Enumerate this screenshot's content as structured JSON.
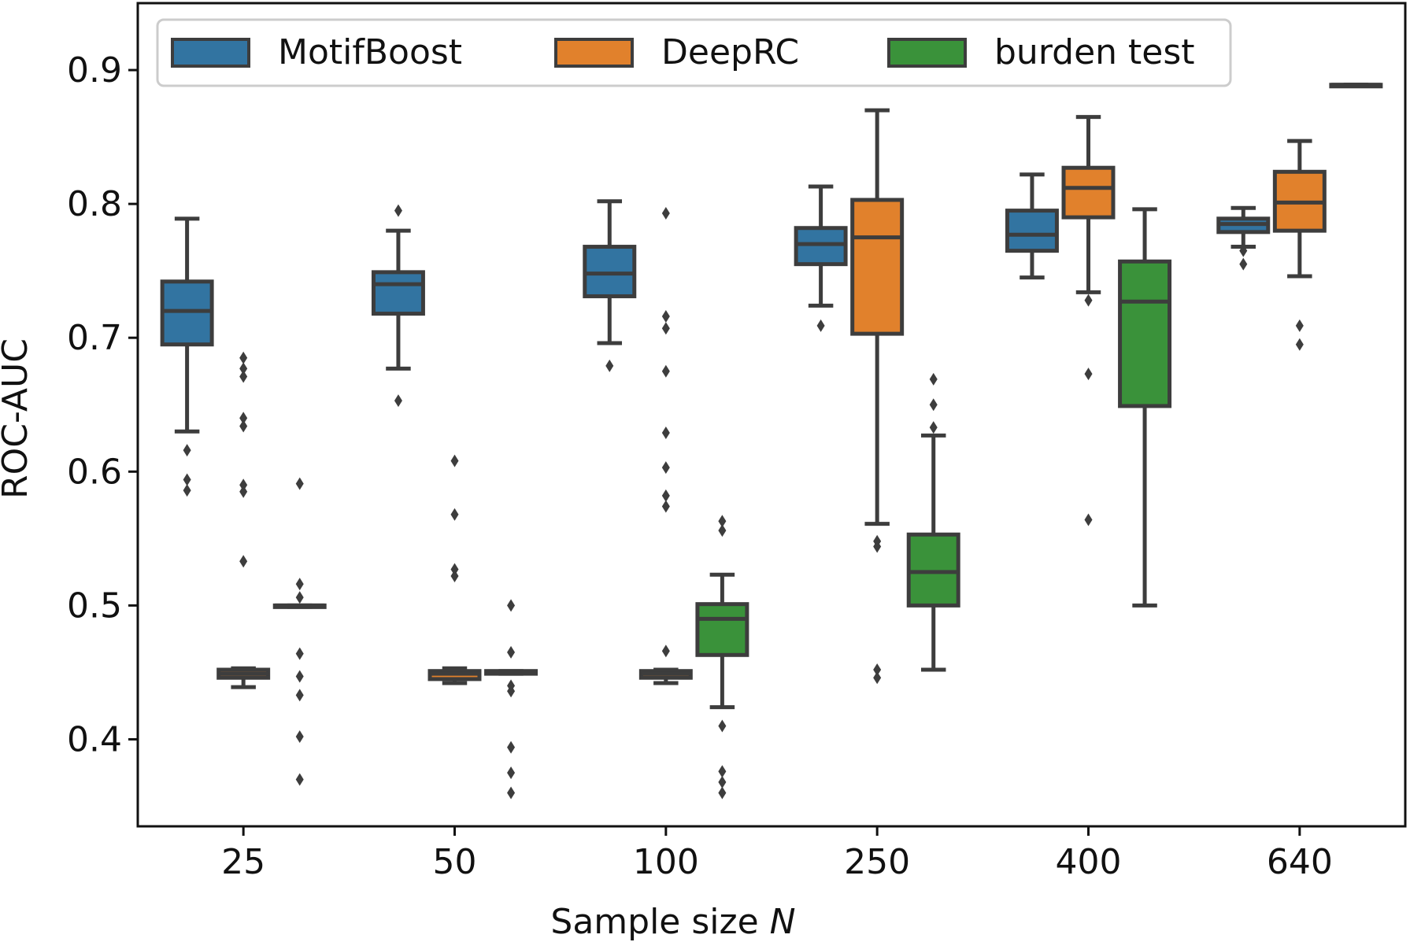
{
  "chart_data": {
    "type": "box",
    "xlabel": "Sample size",
    "xlabel_var": "N",
    "ylabel": "ROC-AUC",
    "ylim": [
      0.335,
      0.95
    ],
    "yticks": [
      0.4,
      0.5,
      0.6,
      0.7,
      0.8,
      0.9
    ],
    "ytick_labels": [
      "0.4",
      "0.5",
      "0.6",
      "0.7",
      "0.8",
      "0.9"
    ],
    "categories": [
      "25",
      "50",
      "100",
      "250",
      "400",
      "640"
    ],
    "legend_position": "top",
    "series": [
      {
        "name": "MotifBoost",
        "color": "#3274a1",
        "boxes": [
          {
            "whislo": 0.63,
            "q1": 0.695,
            "med": 0.72,
            "q3": 0.742,
            "whishi": 0.789,
            "fliers": [
              0.616,
              0.594,
              0.586
            ]
          },
          {
            "whislo": 0.677,
            "q1": 0.718,
            "med": 0.74,
            "q3": 0.749,
            "whishi": 0.78,
            "fliers": [
              0.795,
              0.653
            ]
          },
          {
            "whislo": 0.696,
            "q1": 0.731,
            "med": 0.748,
            "q3": 0.768,
            "whishi": 0.802,
            "fliers": [
              0.679
            ]
          },
          {
            "whislo": 0.724,
            "q1": 0.755,
            "med": 0.77,
            "q3": 0.782,
            "whishi": 0.813,
            "fliers": [
              0.709
            ]
          },
          {
            "whislo": 0.745,
            "q1": 0.765,
            "med": 0.777,
            "q3": 0.795,
            "whishi": 0.822,
            "fliers": []
          },
          {
            "whislo": 0.768,
            "q1": 0.779,
            "med": 0.785,
            "q3": 0.789,
            "whishi": 0.797,
            "fliers": [
              0.765,
              0.755
            ]
          }
        ]
      },
      {
        "name": "DeepRC",
        "color": "#e1812c",
        "boxes": [
          {
            "whislo": 0.439,
            "q1": 0.446,
            "med": 0.449,
            "q3": 0.452,
            "whishi": 0.453,
            "fliers": [
              0.685,
              0.677,
              0.671,
              0.64,
              0.634,
              0.59,
              0.585,
              0.533
            ]
          },
          {
            "whislo": 0.442,
            "q1": 0.445,
            "med": 0.449,
            "q3": 0.451,
            "whishi": 0.453,
            "fliers": [
              0.608,
              0.568,
              0.527,
              0.522
            ]
          },
          {
            "whislo": 0.442,
            "q1": 0.446,
            "med": 0.449,
            "q3": 0.451,
            "whishi": 0.452,
            "fliers": [
              0.793,
              0.716,
              0.707,
              0.675,
              0.629,
              0.603,
              0.582,
              0.574,
              0.466
            ]
          },
          {
            "whislo": 0.561,
            "q1": 0.703,
            "med": 0.775,
            "q3": 0.803,
            "whishi": 0.87,
            "fliers": [
              0.548,
              0.544,
              0.452,
              0.446
            ]
          },
          {
            "whislo": 0.734,
            "q1": 0.79,
            "med": 0.812,
            "q3": 0.827,
            "whishi": 0.865,
            "fliers": [
              0.728,
              0.673,
              0.564
            ]
          },
          {
            "whislo": 0.746,
            "q1": 0.78,
            "med": 0.801,
            "q3": 0.824,
            "whishi": 0.847,
            "fliers": [
              0.709,
              0.695
            ]
          }
        ]
      },
      {
        "name": "burden test",
        "color": "#3a923a",
        "boxes": [
          {
            "whislo": 0.499,
            "q1": 0.499,
            "med": 0.5,
            "q3": 0.5,
            "whishi": 0.5,
            "fliers": [
              0.591,
              0.516,
              0.506,
              0.464,
              0.447,
              0.433,
              0.402,
              0.37
            ]
          },
          {
            "whislo": 0.449,
            "q1": 0.449,
            "med": 0.45,
            "q3": 0.451,
            "whishi": 0.451,
            "fliers": [
              0.5,
              0.465,
              0.44,
              0.436,
              0.394,
              0.375,
              0.36
            ]
          },
          {
            "whislo": 0.424,
            "q1": 0.463,
            "med": 0.49,
            "q3": 0.501,
            "whishi": 0.523,
            "fliers": [
              0.563,
              0.556,
              0.41,
              0.376,
              0.368,
              0.36
            ]
          },
          {
            "whislo": 0.452,
            "q1": 0.5,
            "med": 0.525,
            "q3": 0.553,
            "whishi": 0.627,
            "fliers": [
              0.669,
              0.65,
              0.633
            ]
          },
          {
            "whislo": 0.5,
            "q1": 0.649,
            "med": 0.727,
            "q3": 0.757,
            "whishi": 0.796,
            "fliers": []
          },
          {
            "whislo": 0.889,
            "q1": 0.889,
            "med": 0.889,
            "q3": 0.889,
            "whishi": 0.889,
            "fliers": []
          }
        ]
      }
    ]
  }
}
